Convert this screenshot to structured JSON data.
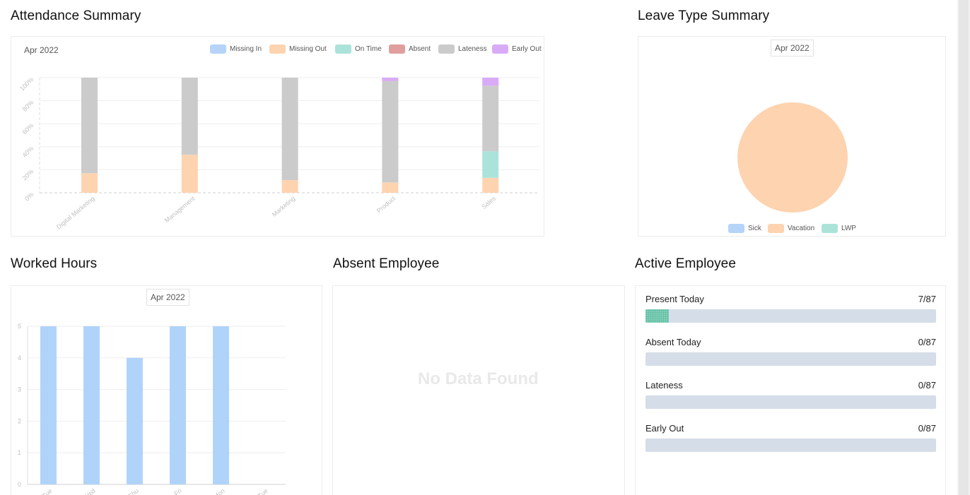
{
  "attendance": {
    "title": "Attendance Summary",
    "period": "Apr 2022",
    "legend": [
      {
        "label": "Missing In",
        "color": "#b5d4f8"
      },
      {
        "label": "Missing Out",
        "color": "#fdd3b0"
      },
      {
        "label": "On Time",
        "color": "#abe3da"
      },
      {
        "label": "Absent",
        "color": "#e09e9e"
      },
      {
        "label": "Lateness",
        "color": "#cbcbcb"
      },
      {
        "label": "Early Out",
        "color": "#d9abf7"
      }
    ]
  },
  "leave": {
    "title": "Leave Type Summary",
    "period": "Apr 2022",
    "legend": [
      {
        "label": "Sick",
        "color": "#b5d4f8"
      },
      {
        "label": "Vacation",
        "color": "#fdd3b0"
      },
      {
        "label": "LWP",
        "color": "#abe3da"
      }
    ]
  },
  "worked": {
    "title": "Worked Hours",
    "period": "Apr 2022"
  },
  "absent": {
    "title": "Absent Employee",
    "empty_text": "No Data Found"
  },
  "active": {
    "title": "Active Employee",
    "stats": [
      {
        "label": "Present Today",
        "value": "7/87",
        "fraction": 0.08
      },
      {
        "label": "Absent Today",
        "value": "0/87",
        "fraction": 0
      },
      {
        "label": "Lateness",
        "value": "0/87",
        "fraction": 0
      },
      {
        "label": "Early Out",
        "value": "0/87",
        "fraction": 0
      }
    ]
  },
  "chart_data": [
    {
      "type": "bar",
      "stacked": true,
      "title": "",
      "categories": [
        "Digital Marketing",
        "Management",
        "Marketing",
        "Product",
        "Sales"
      ],
      "y_ticks": [
        "0%",
        "20%",
        "40%",
        "60%",
        "80%",
        "100%"
      ],
      "ylim": [
        0,
        100
      ],
      "series": [
        {
          "name": "Missing In",
          "color": "#b5d4f8",
          "values": [
            0,
            0,
            0,
            0,
            0
          ]
        },
        {
          "name": "Missing Out",
          "color": "#fdd3b0",
          "values": [
            17,
            33,
            11,
            9,
            13
          ]
        },
        {
          "name": "On Time",
          "color": "#abe3da",
          "values": [
            0,
            0,
            0,
            0,
            23
          ]
        },
        {
          "name": "Absent",
          "color": "#e09e9e",
          "values": [
            0,
            0,
            0,
            0,
            0
          ]
        },
        {
          "name": "Lateness",
          "color": "#cbcbcb",
          "values": [
            83,
            67,
            89,
            88,
            57
          ]
        },
        {
          "name": "Early Out",
          "color": "#d9abf7",
          "values": [
            0,
            0,
            0,
            3,
            7
          ]
        }
      ],
      "grid": true,
      "legend_position": "top-right"
    },
    {
      "type": "pie",
      "title": "",
      "slices": [
        {
          "name": "Sick",
          "color": "#b5d4f8",
          "value": 0
        },
        {
          "name": "Vacation",
          "color": "#fdd3b0",
          "value": 100
        },
        {
          "name": "LWP",
          "color": "#abe3da",
          "value": 0
        }
      ],
      "legend_position": "bottom"
    },
    {
      "type": "bar",
      "title": "",
      "categories": [
        "Tue",
        "Wed",
        "Thu",
        "Fri",
        "Mon",
        "Tue"
      ],
      "values": [
        5,
        5,
        4,
        5,
        5,
        0
      ],
      "y_ticks": [
        "0",
        "1",
        "2",
        "3",
        "4",
        "5"
      ],
      "ylim": [
        0,
        5
      ],
      "bar_color": "#b0d3fa",
      "grid": true
    }
  ]
}
